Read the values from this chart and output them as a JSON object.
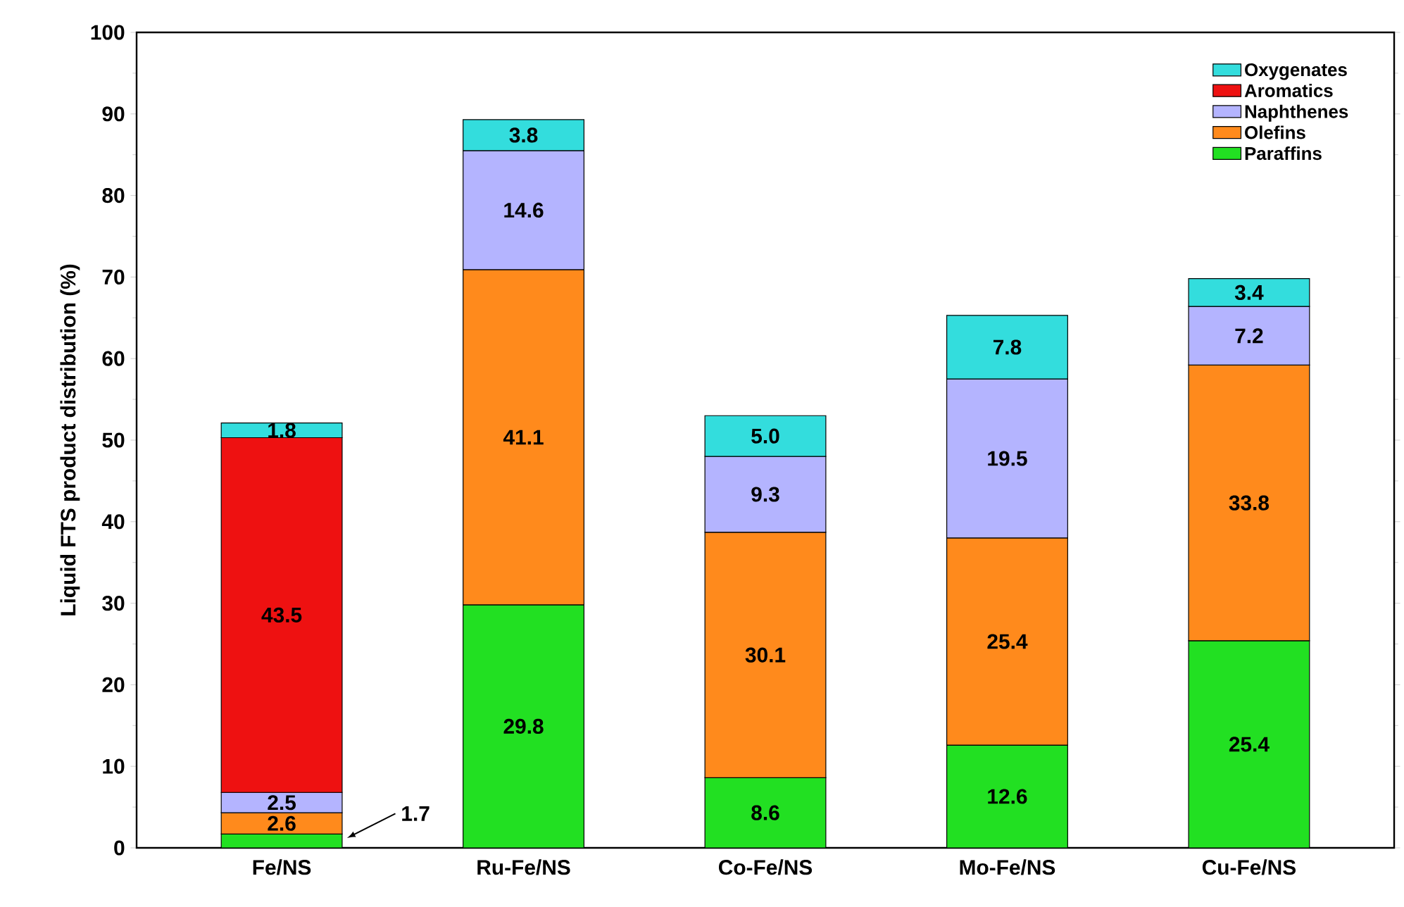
{
  "chart_data": {
    "type": "bar",
    "stacked": true,
    "ylabel": "Liquid FTS product distribution (%)",
    "categories": [
      "Fe/NS",
      "Ru-Fe/NS",
      "Co-Fe/NS",
      "Mo-Fe/NS",
      "Cu-Fe/NS"
    ],
    "ylim": [
      0,
      100
    ],
    "yticks": [
      0,
      10,
      20,
      30,
      40,
      50,
      60,
      70,
      80,
      90,
      100
    ],
    "legend": "top right",
    "series": [
      {
        "name": "Paraffins",
        "color": "#22e022",
        "values": [
          1.7,
          29.8,
          8.6,
          12.6,
          25.4
        ],
        "value_labels": [
          null,
          "29.8",
          "8.6",
          "12.6",
          "25.4"
        ]
      },
      {
        "name": "Olefins",
        "color": "#ff8a1c",
        "values": [
          2.6,
          41.1,
          30.1,
          25.4,
          33.8
        ],
        "value_labels": [
          "2.6",
          "41.1",
          "30.1",
          "25.4",
          "33.8"
        ]
      },
      {
        "name": "Naphthenes",
        "color": "#b4b4ff",
        "values": [
          2.5,
          14.6,
          9.3,
          19.5,
          7.2
        ],
        "value_labels": [
          "2.5",
          "14.6",
          "9.3",
          "19.5",
          "7.2"
        ]
      },
      {
        "name": "Aromatics",
        "color": "#ee1111",
        "values": [
          43.5,
          null,
          null,
          null,
          null
        ],
        "value_labels": [
          "43.5",
          null,
          null,
          null,
          null
        ]
      },
      {
        "name": "Oxygenates",
        "color": "#33dddd",
        "values": [
          1.8,
          3.8,
          5.0,
          7.8,
          3.4
        ],
        "value_labels": [
          "1.8",
          "3.8",
          "5.0",
          "7.8",
          "3.4"
        ]
      }
    ],
    "annotations": [
      "1.7"
    ]
  }
}
